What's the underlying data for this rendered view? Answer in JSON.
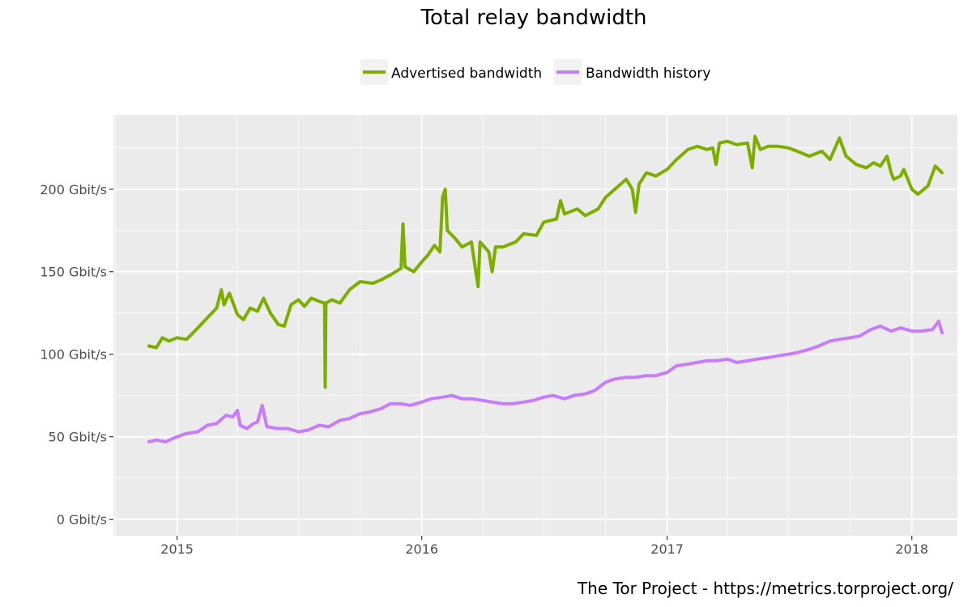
{
  "chart_data": {
    "type": "line",
    "title": "Total relay bandwidth",
    "caption": "The Tor Project - https://metrics.torproject.org/",
    "xlabel": "",
    "ylabel": "",
    "x_ticks": [
      "2015",
      "2016",
      "2017",
      "2018"
    ],
    "y_ticks": [
      "0 Gbit/s",
      "50 Gbit/s",
      "100 Gbit/s",
      "150 Gbit/s",
      "200 Gbit/s"
    ],
    "y_tick_values": [
      0,
      50,
      100,
      150,
      200
    ],
    "ylim": [
      -10,
      245
    ],
    "xlim": [
      "2014-09-28",
      "2018-03-10"
    ],
    "grid": true,
    "legend_position": "top",
    "colors": {
      "panel": "#ebebeb",
      "grid": "#ffffff"
    },
    "series": [
      {
        "name": "Advertised bandwidth",
        "color": "#7cae00",
        "points": [
          [
            "2014-11-20",
            105
          ],
          [
            "2014-12-01",
            104
          ],
          [
            "2014-12-10",
            110
          ],
          [
            "2014-12-20",
            108
          ],
          [
            "2015-01-01",
            110
          ],
          [
            "2015-01-15",
            109
          ],
          [
            "2015-02-01",
            116
          ],
          [
            "2015-02-15",
            122
          ],
          [
            "2015-03-01",
            128
          ],
          [
            "2015-03-08",
            139
          ],
          [
            "2015-03-12",
            130
          ],
          [
            "2015-03-20",
            137
          ],
          [
            "2015-04-01",
            124
          ],
          [
            "2015-04-10",
            121
          ],
          [
            "2015-04-20",
            128
          ],
          [
            "2015-05-01",
            126
          ],
          [
            "2015-05-10",
            134
          ],
          [
            "2015-05-20",
            125
          ],
          [
            "2015-06-01",
            118
          ],
          [
            "2015-06-10",
            117
          ],
          [
            "2015-06-20",
            130
          ],
          [
            "2015-07-01",
            133
          ],
          [
            "2015-07-10",
            129
          ],
          [
            "2015-07-20",
            134
          ],
          [
            "2015-08-01",
            132
          ],
          [
            "2015-08-09",
            131
          ],
          [
            "2015-08-10",
            80
          ],
          [
            "2015-08-11",
            131
          ],
          [
            "2015-08-20",
            133
          ],
          [
            "2015-09-01",
            131
          ],
          [
            "2015-09-15",
            139
          ],
          [
            "2015-10-01",
            144
          ],
          [
            "2015-10-20",
            143
          ],
          [
            "2015-11-01",
            145
          ],
          [
            "2015-11-15",
            148
          ],
          [
            "2015-12-01",
            152
          ],
          [
            "2015-12-04",
            179
          ],
          [
            "2015-12-07",
            153
          ],
          [
            "2015-12-20",
            150
          ],
          [
            "2016-01-01",
            156
          ],
          [
            "2016-01-10",
            160
          ],
          [
            "2016-01-20",
            166
          ],
          [
            "2016-01-28",
            162
          ],
          [
            "2016-02-01",
            195
          ],
          [
            "2016-02-05",
            200
          ],
          [
            "2016-02-08",
            175
          ],
          [
            "2016-02-20",
            170
          ],
          [
            "2016-03-01",
            165
          ],
          [
            "2016-03-15",
            168
          ],
          [
            "2016-03-25",
            141
          ],
          [
            "2016-03-28",
            168
          ],
          [
            "2016-04-10",
            162
          ],
          [
            "2016-04-15",
            150
          ],
          [
            "2016-04-20",
            165
          ],
          [
            "2016-05-01",
            165
          ],
          [
            "2016-05-20",
            168
          ],
          [
            "2016-06-01",
            173
          ],
          [
            "2016-06-20",
            172
          ],
          [
            "2016-07-01",
            180
          ],
          [
            "2016-07-20",
            182
          ],
          [
            "2016-07-26",
            193
          ],
          [
            "2016-08-01",
            185
          ],
          [
            "2016-08-20",
            188
          ],
          [
            "2016-09-01",
            184
          ],
          [
            "2016-09-20",
            188
          ],
          [
            "2016-10-01",
            195
          ],
          [
            "2016-10-15",
            200
          ],
          [
            "2016-11-01",
            206
          ],
          [
            "2016-11-10",
            200
          ],
          [
            "2016-11-15",
            186
          ],
          [
            "2016-11-20",
            203
          ],
          [
            "2016-12-01",
            210
          ],
          [
            "2016-12-15",
            208
          ],
          [
            "2017-01-01",
            212
          ],
          [
            "2017-01-15",
            218
          ],
          [
            "2017-02-01",
            224
          ],
          [
            "2017-02-15",
            226
          ],
          [
            "2017-03-01",
            224
          ],
          [
            "2017-03-10",
            225
          ],
          [
            "2017-03-15",
            215
          ],
          [
            "2017-03-20",
            228
          ],
          [
            "2017-04-01",
            229
          ],
          [
            "2017-04-15",
            227
          ],
          [
            "2017-05-01",
            228
          ],
          [
            "2017-05-08",
            213
          ],
          [
            "2017-05-12",
            232
          ],
          [
            "2017-05-20",
            224
          ],
          [
            "2017-06-01",
            226
          ],
          [
            "2017-06-15",
            226
          ],
          [
            "2017-07-01",
            225
          ],
          [
            "2017-07-20",
            222
          ],
          [
            "2017-08-01",
            220
          ],
          [
            "2017-08-20",
            223
          ],
          [
            "2017-09-01",
            218
          ],
          [
            "2017-09-15",
            231
          ],
          [
            "2017-09-25",
            220
          ],
          [
            "2017-10-10",
            215
          ],
          [
            "2017-10-25",
            213
          ],
          [
            "2017-11-05",
            216
          ],
          [
            "2017-11-15",
            214
          ],
          [
            "2017-11-25",
            220
          ],
          [
            "2017-12-01",
            210
          ],
          [
            "2017-12-05",
            206
          ],
          [
            "2017-12-15",
            208
          ],
          [
            "2017-12-20",
            212
          ],
          [
            "2018-01-01",
            200
          ],
          [
            "2018-01-10",
            197
          ],
          [
            "2018-01-25",
            202
          ],
          [
            "2018-02-05",
            214
          ],
          [
            "2018-02-15",
            210
          ]
        ]
      },
      {
        "name": "Bandwidth history",
        "color": "#c77cff",
        "points": [
          [
            "2014-11-20",
            47
          ],
          [
            "2014-12-01",
            48
          ],
          [
            "2014-12-15",
            47
          ],
          [
            "2015-01-01",
            50
          ],
          [
            "2015-01-15",
            52
          ],
          [
            "2015-02-01",
            53
          ],
          [
            "2015-02-15",
            57
          ],
          [
            "2015-03-01",
            58
          ],
          [
            "2015-03-15",
            63
          ],
          [
            "2015-03-25",
            62
          ],
          [
            "2015-04-01",
            66
          ],
          [
            "2015-04-05",
            57
          ],
          [
            "2015-04-15",
            55
          ],
          [
            "2015-04-25",
            58
          ],
          [
            "2015-05-01",
            59
          ],
          [
            "2015-05-08",
            69
          ],
          [
            "2015-05-15",
            56
          ],
          [
            "2015-06-01",
            55
          ],
          [
            "2015-06-15",
            55
          ],
          [
            "2015-07-01",
            53
          ],
          [
            "2015-07-15",
            54
          ],
          [
            "2015-08-01",
            57
          ],
          [
            "2015-08-15",
            56
          ],
          [
            "2015-09-01",
            60
          ],
          [
            "2015-09-15",
            61
          ],
          [
            "2015-10-01",
            64
          ],
          [
            "2015-10-15",
            65
          ],
          [
            "2015-11-01",
            67
          ],
          [
            "2015-11-15",
            70
          ],
          [
            "2015-12-01",
            70
          ],
          [
            "2015-12-15",
            69
          ],
          [
            "2016-01-01",
            71
          ],
          [
            "2016-01-15",
            73
          ],
          [
            "2016-02-01",
            74
          ],
          [
            "2016-02-15",
            75
          ],
          [
            "2016-03-01",
            73
          ],
          [
            "2016-03-15",
            73
          ],
          [
            "2016-04-01",
            72
          ],
          [
            "2016-04-15",
            71
          ],
          [
            "2016-05-01",
            70
          ],
          [
            "2016-05-15",
            70
          ],
          [
            "2016-06-01",
            71
          ],
          [
            "2016-06-15",
            72
          ],
          [
            "2016-07-01",
            74
          ],
          [
            "2016-07-15",
            75
          ],
          [
            "2016-08-01",
            73
          ],
          [
            "2016-08-15",
            75
          ],
          [
            "2016-09-01",
            76
          ],
          [
            "2016-09-15",
            78
          ],
          [
            "2016-10-01",
            83
          ],
          [
            "2016-10-15",
            85
          ],
          [
            "2016-11-01",
            86
          ],
          [
            "2016-11-15",
            86
          ],
          [
            "2016-12-01",
            87
          ],
          [
            "2016-12-15",
            87
          ],
          [
            "2017-01-01",
            89
          ],
          [
            "2017-01-15",
            93
          ],
          [
            "2017-02-01",
            94
          ],
          [
            "2017-02-15",
            95
          ],
          [
            "2017-03-01",
            96
          ],
          [
            "2017-03-15",
            96
          ],
          [
            "2017-04-01",
            97
          ],
          [
            "2017-04-15",
            95
          ],
          [
            "2017-05-01",
            96
          ],
          [
            "2017-05-15",
            97
          ],
          [
            "2017-06-01",
            98
          ],
          [
            "2017-06-15",
            99
          ],
          [
            "2017-07-01",
            100
          ],
          [
            "2017-07-15",
            101
          ],
          [
            "2017-08-01",
            103
          ],
          [
            "2017-08-15",
            105
          ],
          [
            "2017-09-01",
            108
          ],
          [
            "2017-09-15",
            109
          ],
          [
            "2017-10-01",
            110
          ],
          [
            "2017-10-15",
            111
          ],
          [
            "2017-11-01",
            115
          ],
          [
            "2017-11-15",
            117
          ],
          [
            "2017-12-01",
            114
          ],
          [
            "2017-12-15",
            116
          ],
          [
            "2018-01-01",
            114
          ],
          [
            "2018-01-15",
            114
          ],
          [
            "2018-02-01",
            115
          ],
          [
            "2018-02-10",
            120
          ],
          [
            "2018-02-15",
            113
          ]
        ]
      }
    ]
  }
}
